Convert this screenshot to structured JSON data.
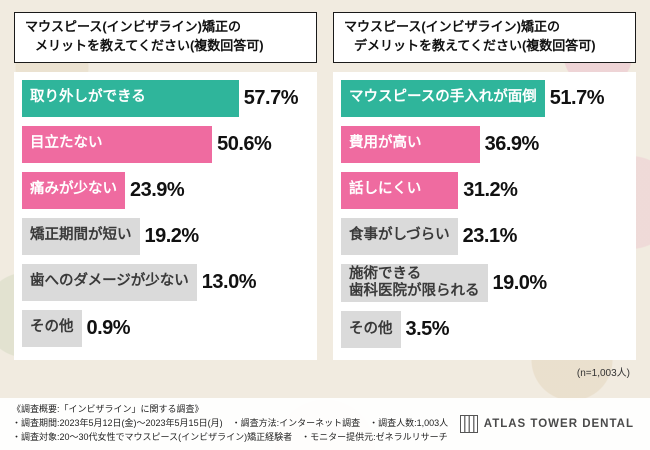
{
  "colors": {
    "teal": "#2fb59b",
    "pink": "#ef6ba0",
    "gray": "#dadada"
  },
  "chart_data": [
    {
      "type": "bar",
      "orientation": "horizontal",
      "title_line1": "マウスピース(インビザライン)矯正の",
      "title_line2": "メリットを教えてください(複数回答可)",
      "unit": "%",
      "xlim": [
        0,
        60
      ],
      "categories": [
        "取り外しができる",
        "目立たない",
        "痛みが少ない",
        "矯正期間が短い",
        "歯へのダメージが少ない",
        "その他"
      ],
      "values": [
        57.7,
        50.6,
        23.9,
        19.2,
        13.0,
        0.9
      ],
      "values_fmt": [
        "57.7%",
        "50.6%",
        "23.9%",
        "19.2%",
        "13.0%",
        "0.9%"
      ],
      "bar_colors": [
        "teal",
        "pink",
        "pink",
        "gray",
        "gray",
        "gray"
      ]
    },
    {
      "type": "bar",
      "orientation": "horizontal",
      "title_line1": "マウスピース(インビザライン)矯正の",
      "title_line2": "デメリットを教えてください(複数回答可)",
      "unit": "%",
      "xlim": [
        0,
        60
      ],
      "categories": [
        "マウスピースの手入れが面倒",
        "費用が高い",
        "話しにくい",
        "食事がしづらい",
        "施術できる\n歯科医院が限られる",
        "その他"
      ],
      "values": [
        51.7,
        36.9,
        31.2,
        23.1,
        19.0,
        3.5
      ],
      "values_fmt": [
        "51.7%",
        "36.9%",
        "31.2%",
        "23.1%",
        "19.0%",
        "3.5%"
      ],
      "bar_colors": [
        "teal",
        "pink",
        "pink",
        "gray",
        "gray",
        "gray"
      ]
    }
  ],
  "sample_note": "(n=1,003人)",
  "footer": {
    "summary_title": "《調査概要:「インビザライン」に関する調査》",
    "line1": "・調査期間:2023年5月12日(金)〜2023年5月15日(月)　・調査方法:インターネット調査　・調査人数:1,003人",
    "line2": "・調査対象:20〜30代女性でマウスピース(インビザライン)矯正経験者　・モニター提供元:ゼネラルリサーチ",
    "logo_text": "ATLAS TOWER DENTAL"
  }
}
